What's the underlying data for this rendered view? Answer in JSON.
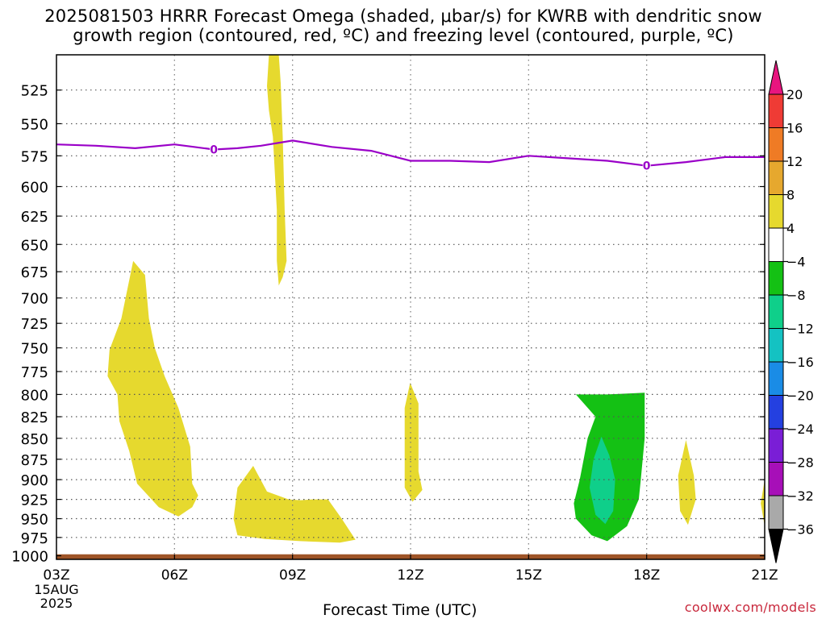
{
  "title": {
    "line1": "2025081503 HRRR Forecast Omega (shaded, μbar/s) for KWRB with dendritic snow",
    "line2": "growth region (contoured, red, ºC) and freezing level (contoured, purple, ºC)"
  },
  "watermark": "coolwx.com/models",
  "chart_data": {
    "type": "area",
    "title": "2025081503 HRRR Forecast Omega (shaded, μbar/s) for KWRB with dendritic snow growth region (contoured, red, ºC) and freezing level (contoured, purple, ºC)",
    "xlabel": "Forecast Time (UTC)",
    "ylabel": "",
    "x_ticks": [
      "03Z",
      "06Z",
      "09Z",
      "12Z",
      "15Z",
      "18Z",
      "21Z"
    ],
    "x_first_tick_sublabels": [
      "15AUG",
      "2025"
    ],
    "xlim": [
      "2025-08-15 03Z",
      "2025-08-15 21Z"
    ],
    "x_range_hours_utc": [
      3,
      21
    ],
    "y_ticks": [
      525,
      550,
      575,
      600,
      625,
      650,
      675,
      700,
      725,
      750,
      775,
      800,
      825,
      850,
      875,
      900,
      925,
      950,
      975,
      1000
    ],
    "ylim": [
      1005,
      500
    ],
    "y_scale": "log-pressure (inverted)",
    "grid": true,
    "colorbar": {
      "labels": [
        "20",
        "16",
        "12",
        "8",
        "4",
        "-4",
        "-8",
        "-12",
        "-16",
        "-20",
        "-24",
        "-28",
        "-32",
        "-36"
      ],
      "colors": [
        "#e8157f",
        "#ef3b35",
        "#ef7b25",
        "#e6a82e",
        "#e6d92e",
        "#ffffff",
        "#14c114",
        "#0fcf8a",
        "#14c2c2",
        "#1a8ce6",
        "#2440e0",
        "#7a1ed6",
        "#a70fb8",
        "#a9a9a9",
        "#000000"
      ]
    },
    "freezing_level": {
      "label": "0",
      "color": "#9a00c8",
      "points": [
        [
          3.0,
          566
        ],
        [
          4.0,
          567
        ],
        [
          5.0,
          569
        ],
        [
          6.0,
          566
        ],
        [
          6.5,
          568
        ],
        [
          7.0,
          570
        ],
        [
          7.6,
          569
        ],
        [
          8.2,
          567
        ],
        [
          9.0,
          563
        ],
        [
          10.0,
          568
        ],
        [
          11.0,
          571
        ],
        [
          12.0,
          579
        ],
        [
          13.0,
          579
        ],
        [
          14.0,
          580
        ],
        [
          15.0,
          575
        ],
        [
          16.0,
          577
        ],
        [
          17.0,
          579
        ],
        [
          18.0,
          583
        ],
        [
          19.0,
          580
        ],
        [
          20.0,
          576
        ],
        [
          21.0,
          576
        ]
      ]
    },
    "omega_regions": [
      {
        "value_range": "4 to 8",
        "color": "#e6d92e",
        "points": [
          [
            8.4,
            500
          ],
          [
            8.65,
            500
          ],
          [
            8.7,
            520
          ],
          [
            8.75,
            560
          ],
          [
            8.8,
            620
          ],
          [
            8.85,
            665
          ],
          [
            8.75,
            680
          ],
          [
            8.65,
            688
          ],
          [
            8.6,
            665
          ],
          [
            8.6,
            620
          ],
          [
            8.5,
            560
          ],
          [
            8.4,
            540
          ],
          [
            8.35,
            522
          ]
        ]
      },
      {
        "value_range": "4 to 8",
        "color": "#e6d92e",
        "points": [
          [
            4.95,
            665
          ],
          [
            5.25,
            678
          ],
          [
            5.35,
            720
          ],
          [
            5.5,
            750
          ],
          [
            5.75,
            780
          ],
          [
            6.1,
            815
          ],
          [
            6.4,
            860
          ],
          [
            6.45,
            905
          ],
          [
            6.6,
            920
          ],
          [
            6.45,
            935
          ],
          [
            6.1,
            947
          ],
          [
            5.6,
            935
          ],
          [
            5.05,
            905
          ],
          [
            4.85,
            865
          ],
          [
            4.6,
            830
          ],
          [
            4.55,
            800
          ],
          [
            4.3,
            780
          ],
          [
            4.35,
            752
          ],
          [
            4.65,
            720
          ]
        ]
      },
      {
        "value_range": "4 to 8",
        "color": "#e6d92e",
        "points": [
          [
            8.0,
            883
          ],
          [
            8.35,
            915
          ],
          [
            8.9,
            925
          ],
          [
            9.2,
            926
          ],
          [
            9.5,
            925
          ],
          [
            9.9,
            925
          ],
          [
            10.25,
            950
          ],
          [
            10.6,
            978
          ],
          [
            10.2,
            982
          ],
          [
            9.2,
            980
          ],
          [
            8.3,
            977
          ],
          [
            7.6,
            972
          ],
          [
            7.5,
            950
          ],
          [
            7.6,
            910
          ]
        ]
      },
      {
        "value_range": "4 to 8",
        "color": "#e6d92e",
        "points": [
          [
            11.99,
            787
          ],
          [
            12.2,
            810
          ],
          [
            12.2,
            855
          ],
          [
            12.2,
            890
          ],
          [
            12.3,
            913
          ],
          [
            12.05,
            928
          ],
          [
            11.85,
            910
          ],
          [
            11.85,
            870
          ],
          [
            11.85,
            815
          ]
        ]
      },
      {
        "value_range": "4 to 8",
        "color": "#e6d92e",
        "points": [
          [
            19.0,
            852
          ],
          [
            19.2,
            895
          ],
          [
            19.25,
            925
          ],
          [
            19.05,
            958
          ],
          [
            18.85,
            940
          ],
          [
            18.8,
            895
          ]
        ]
      },
      {
        "value_range": "4 to 8",
        "color": "#e6d92e",
        "points": [
          [
            21.0,
            900
          ],
          [
            21.0,
            960
          ],
          [
            20.9,
            930
          ]
        ]
      },
      {
        "value_range": "-4 to -8",
        "color": "#14c114",
        "points": [
          [
            16.2,
            800
          ],
          [
            17.0,
            800
          ],
          [
            17.95,
            798
          ],
          [
            17.95,
            850
          ],
          [
            17.85,
            900
          ],
          [
            17.8,
            925
          ],
          [
            17.5,
            960
          ],
          [
            17.0,
            980
          ],
          [
            16.6,
            972
          ],
          [
            16.2,
            950
          ],
          [
            16.15,
            930
          ],
          [
            16.3,
            900
          ],
          [
            16.4,
            875
          ],
          [
            16.5,
            850
          ],
          [
            16.7,
            825
          ]
        ]
      },
      {
        "value_range": "-8 to -12",
        "color": "#0fcf8a",
        "points": [
          [
            16.85,
            848
          ],
          [
            17.05,
            870
          ],
          [
            17.2,
            900
          ],
          [
            17.15,
            940
          ],
          [
            16.95,
            957
          ],
          [
            16.7,
            945
          ],
          [
            16.55,
            910
          ],
          [
            16.65,
            875
          ]
        ]
      }
    ],
    "surface_band": {
      "color": "#9e5427",
      "from_pressure": 1005,
      "to_pressure": 998
    }
  }
}
